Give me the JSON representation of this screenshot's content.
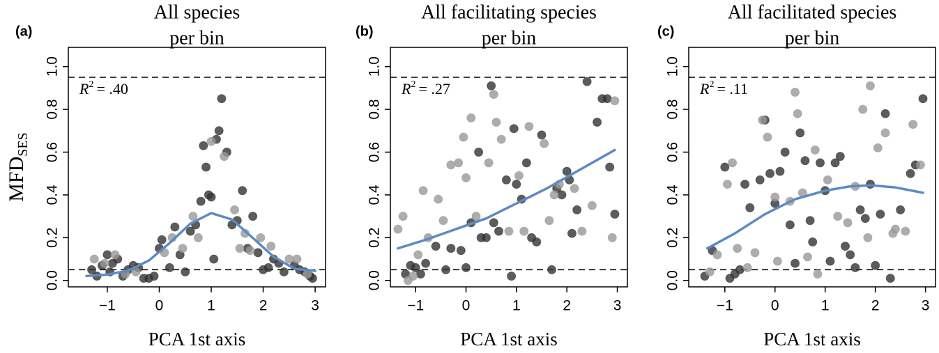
{
  "chart_data": [
    {
      "type": "scatter",
      "panel_label": "(a)",
      "title": [
        "All species",
        "per bin"
      ],
      "x_label": "PCA 1st axis",
      "y_label": {
        "main": "MFD",
        "sub": "SES"
      },
      "annotation": {
        "symbol": "R",
        "sup": "2",
        "text": "= .40"
      },
      "xlim": [
        -1.75,
        3.2
      ],
      "ylim": [
        -0.03,
        1.09
      ],
      "xticks": [
        {
          "value": -1,
          "label": "−1"
        },
        0,
        1,
        2,
        3
      ],
      "yticks": [
        {
          "value": 0,
          "label": "0.0"
        },
        0.2,
        0.4,
        0.6,
        0.8,
        {
          "value": 1,
          "label": "1.0"
        }
      ],
      "hlines": [
        0.05,
        0.95
      ],
      "series": [
        {
          "type": "scatter",
          "color": "#333333",
          "x": [
            -1.3,
            -1.2,
            -1.1,
            -1.0,
            -0.95,
            -0.9,
            -0.8,
            -0.7,
            -0.6,
            -0.5,
            -0.4,
            -0.3,
            -0.2,
            -0.1,
            0.0,
            0.05,
            0.2,
            0.3,
            0.4,
            0.5,
            0.6,
            0.7,
            0.8,
            0.85,
            0.9,
            0.95,
            1.0,
            1.05,
            1.1,
            1.15,
            1.2,
            1.3,
            1.4,
            1.5,
            1.6,
            1.7,
            1.8,
            1.9,
            2.0,
            2.1,
            2.2,
            2.3,
            2.4,
            2.6,
            2.7,
            2.8,
            2.9,
            2.95
          ],
          "values": [
            0.05,
            0.02,
            0.07,
            0.12,
            0.04,
            0.08,
            0.1,
            0.02,
            0.05,
            0.07,
            0.06,
            0.01,
            0.01,
            0.02,
            0.15,
            0.19,
            0.06,
            0.25,
            0.12,
            0.04,
            0.23,
            0.26,
            0.37,
            0.63,
            0.53,
            0.4,
            0.39,
            0.1,
            0.66,
            0.7,
            0.85,
            0.6,
            0.26,
            0.28,
            0.42,
            0.15,
            0.3,
            0.13,
            0.05,
            0.06,
            0.1,
            0.08,
            0.04,
            0.07,
            0.05,
            0.04,
            0.02,
            0.01
          ]
        },
        {
          "type": "scatter",
          "color": "#999999",
          "x": [
            -1.25,
            -1.05,
            -0.85,
            -0.65,
            -0.45,
            0.1,
            0.25,
            0.45,
            0.65,
            0.75,
            1.0,
            1.25,
            1.45,
            1.55,
            1.65,
            1.75,
            1.95,
            2.15,
            2.5,
            2.65,
            2.85
          ],
          "values": [
            0.1,
            0.08,
            0.12,
            0.03,
            0.04,
            0.13,
            0.2,
            0.15,
            0.3,
            0.2,
            0.65,
            0.58,
            0.33,
            0.15,
            0.22,
            0.14,
            0.2,
            0.16,
            0.1,
            0.1,
            0.03
          ]
        },
        {
          "type": "line",
          "color": "#5b8bc4",
          "x": [
            -1.4,
            -1.0,
            -0.6,
            -0.2,
            0.2,
            0.6,
            1.0,
            1.4,
            1.8,
            2.2,
            2.6,
            3.0
          ],
          "values": [
            0.021,
            0.027,
            0.046,
            0.093,
            0.175,
            0.266,
            0.315,
            0.285,
            0.199,
            0.111,
            0.055,
            0.045
          ]
        }
      ]
    },
    {
      "type": "scatter",
      "panel_label": "(b)",
      "title": [
        "All facilitating species",
        "per bin"
      ],
      "x_label": "PCA 1st axis",
      "annotation": {
        "symbol": "R",
        "sup": "2",
        "text": "= .27"
      },
      "xlim": [
        -1.5,
        3.2
      ],
      "ylim": [
        -0.03,
        1.09
      ],
      "xticks": [
        {
          "value": -1,
          "label": "−1"
        },
        0,
        1,
        2,
        3
      ],
      "yticks": [
        {
          "value": 0,
          "label": "0.0"
        },
        0.2,
        0.4,
        0.6,
        0.8,
        {
          "value": 1,
          "label": "1.0"
        }
      ],
      "hlines": [
        0.05,
        0.95
      ],
      "series": [
        {
          "type": "scatter",
          "color": "#333333",
          "x": [
            -1.2,
            -1.1,
            -1.0,
            -0.9,
            -0.8,
            -0.6,
            -0.4,
            -0.3,
            -0.1,
            0.0,
            0.1,
            0.25,
            0.3,
            0.4,
            0.5,
            0.55,
            0.65,
            0.8,
            0.9,
            0.95,
            1.0,
            1.1,
            1.2,
            1.3,
            1.4,
            1.5,
            1.7,
            1.8,
            1.9,
            2.0,
            2.05,
            2.1,
            2.2,
            2.4,
            2.6,
            2.7,
            2.8,
            2.85,
            2.95
          ],
          "values": [
            0.03,
            0.07,
            0.06,
            0.03,
            0.08,
            0.16,
            0.05,
            0.15,
            0.14,
            0.06,
            0.27,
            0.6,
            0.2,
            0.2,
            0.91,
            0.27,
            0.23,
            0.47,
            0.02,
            0.71,
            0.45,
            0.38,
            0.55,
            0.2,
            0.18,
            0.68,
            0.05,
            0.43,
            0.4,
            0.51,
            0.47,
            0.22,
            0.33,
            0.93,
            0.74,
            0.85,
            0.85,
            0.53,
            0.31
          ]
        },
        {
          "type": "scatter",
          "color": "#999999",
          "x": [
            -1.35,
            -1.25,
            -1.15,
            -1.05,
            -0.95,
            -0.85,
            -0.75,
            -0.55,
            -0.45,
            -0.3,
            -0.15,
            -0.05,
            0.0,
            0.1,
            0.2,
            0.45,
            0.55,
            0.6,
            0.7,
            0.85,
            1.05,
            1.15,
            1.25,
            1.55,
            1.65,
            1.75,
            1.85,
            2.15,
            2.3,
            2.5,
            2.9,
            2.95
          ],
          "values": [
            0.24,
            0.3,
            0.0,
            0.02,
            0.12,
            0.42,
            0.2,
            0.38,
            0.28,
            0.54,
            0.55,
            0.67,
            0.48,
            0.76,
            0.3,
            0.55,
            0.87,
            0.74,
            0.66,
            0.23,
            0.49,
            0.23,
            0.72,
            0.64,
            0.28,
            0.4,
            0.45,
            0.43,
            0.23,
            0.35,
            0.2,
            0.84
          ]
        },
        {
          "type": "line",
          "color": "#5b8bc4",
          "x": [
            -1.35,
            -0.8,
            -0.2,
            0.4,
            1.0,
            1.6,
            2.2,
            2.95
          ],
          "values": [
            0.15,
            0.19,
            0.24,
            0.29,
            0.36,
            0.43,
            0.51,
            0.61
          ]
        }
      ]
    },
    {
      "type": "scatter",
      "panel_label": "(c)",
      "title": [
        "All facilitated species",
        "per bin"
      ],
      "x_label": "PCA 1st axis",
      "annotation": {
        "symbol": "R",
        "sup": "2",
        "text": "= .11"
      },
      "xlim": [
        -1.72,
        3.2
      ],
      "ylim": [
        -0.03,
        1.09
      ],
      "xticks": [
        {
          "value": -1,
          "label": "−1"
        },
        0,
        1,
        2,
        3
      ],
      "yticks": [
        {
          "value": 0,
          "label": "0.0"
        },
        0.2,
        0.4,
        0.6,
        0.8,
        {
          "value": 1,
          "label": "1.0"
        }
      ],
      "hlines": [
        0.05,
        0.95
      ],
      "series": [
        {
          "type": "scatter",
          "color": "#333333",
          "x": [
            -1.4,
            -1.25,
            -1.0,
            -0.9,
            -0.8,
            -0.7,
            -0.6,
            -0.5,
            -0.3,
            -0.2,
            -0.1,
            0.0,
            0.1,
            0.2,
            0.3,
            0.4,
            0.5,
            0.6,
            0.7,
            0.75,
            0.9,
            1.0,
            1.1,
            1.2,
            1.3,
            1.4,
            1.5,
            1.6,
            1.7,
            1.8,
            1.9,
            2.0,
            2.1,
            2.2,
            2.3,
            2.5,
            2.7,
            2.8,
            2.95
          ],
          "values": [
            0.02,
            0.14,
            0.53,
            0.01,
            0.03,
            0.05,
            0.45,
            0.34,
            0.47,
            0.75,
            0.5,
            0.36,
            0.51,
            0.6,
            0.26,
            0.08,
            0.69,
            0.56,
            0.28,
            0.18,
            0.55,
            0.42,
            0.09,
            0.55,
            0.58,
            0.16,
            0.12,
            0.06,
            0.33,
            0.29,
            0.45,
            0.07,
            0.31,
            0.78,
            0.01,
            0.33,
            0.5,
            0.54,
            0.85
          ]
        },
        {
          "type": "scatter",
          "color": "#999999",
          "x": [
            -1.3,
            -1.15,
            -0.95,
            -0.85,
            -0.75,
            -0.55,
            -0.4,
            -0.25,
            -0.15,
            0.0,
            0.05,
            0.3,
            0.4,
            0.45,
            0.55,
            0.65,
            0.8,
            0.85,
            1.05,
            1.25,
            1.45,
            1.6,
            1.75,
            1.85,
            1.9,
            2.05,
            2.2,
            2.35,
            2.4,
            2.6,
            2.75,
            2.9
          ],
          "values": [
            0.04,
            0.12,
            0.45,
            0.55,
            0.15,
            0.06,
            0.13,
            0.75,
            0.67,
            0.39,
            0.09,
            0.37,
            0.88,
            0.78,
            0.41,
            0.11,
            0.61,
            0.03,
            0.47,
            0.3,
            0.27,
            0.44,
            0.8,
            0.2,
            0.91,
            0.62,
            0.69,
            0.22,
            0.24,
            0.23,
            0.73,
            0.54
          ]
        },
        {
          "type": "line",
          "color": "#5b8bc4",
          "x": [
            -1.35,
            -0.8,
            -0.2,
            0.4,
            1.0,
            1.5,
            1.9,
            2.4,
            2.95
          ],
          "values": [
            0.15,
            0.22,
            0.31,
            0.38,
            0.42,
            0.44,
            0.445,
            0.435,
            0.41
          ]
        }
      ]
    }
  ]
}
